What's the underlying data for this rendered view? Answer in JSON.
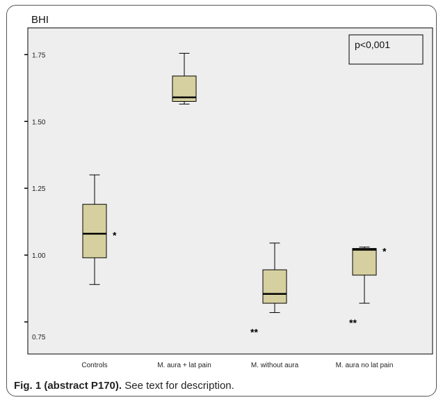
{
  "caption": {
    "label": "Fig. 1 (abstract P170).",
    "text": "See text for description."
  },
  "colors": {
    "plot_background": "#eeeeee",
    "box_fill": "#d6d0a0",
    "outline": "#000000"
  },
  "chart_data": {
    "type": "box",
    "title": "",
    "ylabel": "BHI",
    "xlabel": "",
    "ylim": [
      0.63,
      1.85
    ],
    "yticks": [
      0.75,
      1.0,
      1.25,
      1.5,
      1.75
    ],
    "yticklabels": [
      "0.75",
      "1.00",
      "1.25",
      "1.50",
      "1.75"
    ],
    "grid": false,
    "annotation": "p<0,001",
    "annotation_position": "top-right",
    "categories": [
      "Controls",
      "M. aura + lat pain",
      "M. without aura",
      "M. aura no lat pain"
    ],
    "boxes": [
      {
        "whisker_low": 0.89,
        "q1": 0.99,
        "median": 1.08,
        "q3": 1.19,
        "whisker_high": 1.3,
        "marker": "*",
        "marker_position": "right"
      },
      {
        "whisker_low": 1.565,
        "q1": 1.575,
        "median": 1.59,
        "q3": 1.67,
        "whisker_high": 1.755,
        "marker": "",
        "marker_position": ""
      },
      {
        "whisker_low": 0.785,
        "q1": 0.82,
        "median": 0.855,
        "q3": 0.945,
        "whisker_high": 1.045,
        "marker": "**",
        "marker_position": "below-left"
      },
      {
        "whisker_low": 0.82,
        "q1": 0.925,
        "median": 1.02,
        "q3": 1.025,
        "whisker_high": 1.03,
        "marker": "*",
        "marker_position": "right",
        "lower_marker": "**"
      }
    ]
  }
}
